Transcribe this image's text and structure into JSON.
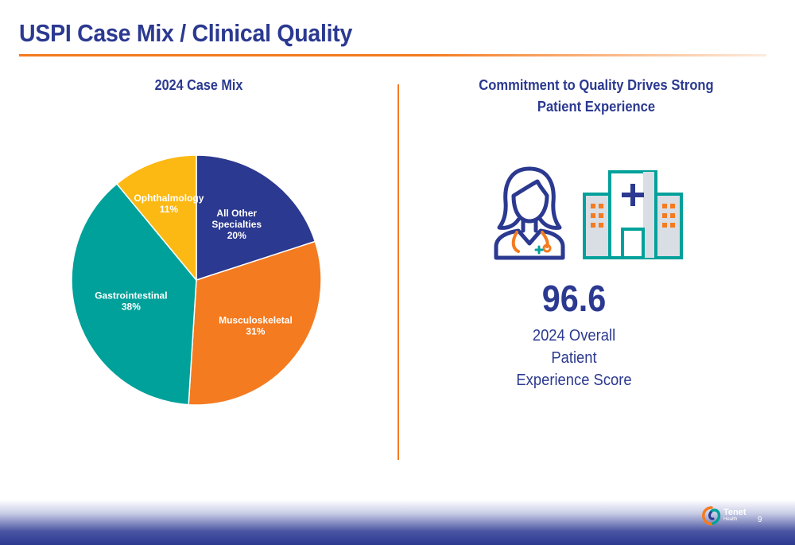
{
  "slide": {
    "title": "USPI Case Mix / Clinical Quality",
    "page_number": "9"
  },
  "chart_data": {
    "type": "pie",
    "title": "2024 Case Mix",
    "slices": [
      {
        "label": "All Other Specialties",
        "value": 20,
        "value_label": "20%",
        "color": "#2b3990",
        "text_color": "#ffffff"
      },
      {
        "label": "Musculoskeletal",
        "value": 31,
        "value_label": "31%",
        "color": "#f47b20",
        "text_color": "#ffffff"
      },
      {
        "label": "Gastrointestinal",
        "value": 38,
        "value_label": "38%",
        "color": "#00a19a",
        "text_color": "#ffffff"
      },
      {
        "label": "Ophthalmology",
        "value": 11,
        "value_label": "11%",
        "color": "#fdb913",
        "text_color": "#ffffff"
      }
    ],
    "start": "12 o'clock",
    "direction": "clockwise"
  },
  "quality": {
    "title_line1": "Commitment to Quality Drives Strong",
    "title_line2": "Patient Experience",
    "score": "96.6",
    "label_line1": "2024 Overall",
    "label_line2": "Patient",
    "label_line3": "Experience Score",
    "icons": [
      "doctor-icon",
      "hospital-icon"
    ]
  },
  "logo": {
    "name": "Tenet",
    "sub": "Health"
  },
  "colors": {
    "navy": "#2b3990",
    "orange": "#f47b20",
    "teal": "#00a19a",
    "yellow": "#fdb913"
  }
}
